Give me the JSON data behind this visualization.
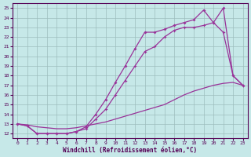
{
  "xlabel": "Windchill (Refroidissement éolien,°C)",
  "bg_color": "#c6e8e8",
  "grid_color": "#9dbdbd",
  "line_color": "#993399",
  "xlim": [
    -0.5,
    23.5
  ],
  "ylim": [
    11.5,
    25.5
  ],
  "xticks": [
    0,
    1,
    2,
    3,
    4,
    5,
    6,
    7,
    8,
    9,
    10,
    11,
    12,
    13,
    14,
    15,
    16,
    17,
    18,
    19,
    20,
    21,
    22,
    23
  ],
  "yticks": [
    12,
    13,
    14,
    15,
    16,
    17,
    18,
    19,
    20,
    21,
    22,
    23,
    24,
    25
  ],
  "line1_x": [
    0,
    1,
    2,
    3,
    4,
    5,
    6,
    7,
    8,
    9,
    10,
    11,
    12,
    13,
    14,
    15,
    16,
    17,
    18,
    19,
    20,
    21,
    22,
    23
  ],
  "line1_y": [
    13.0,
    12.9,
    12.7,
    12.6,
    12.5,
    12.5,
    12.6,
    12.8,
    13.0,
    13.2,
    13.5,
    13.8,
    14.1,
    14.4,
    14.7,
    15.0,
    15.5,
    16.0,
    16.4,
    16.7,
    17.0,
    17.2,
    17.3,
    17.0
  ],
  "line2_x": [
    0,
    1,
    2,
    3,
    4,
    5,
    6,
    7,
    8,
    9,
    10,
    11,
    12,
    13,
    14,
    15,
    16,
    17,
    18,
    19,
    20,
    21,
    22,
    23
  ],
  "line2_y": [
    13.0,
    12.8,
    12.0,
    12.0,
    12.0,
    12.0,
    12.2,
    12.5,
    13.5,
    14.5,
    16.0,
    17.5,
    19.0,
    20.5,
    21.0,
    22.0,
    22.7,
    23.0,
    23.0,
    23.2,
    23.5,
    22.5,
    18.0,
    17.0
  ],
  "line3_x": [
    0,
    1,
    2,
    3,
    4,
    5,
    6,
    7,
    8,
    9,
    10,
    11,
    12,
    13,
    14,
    15,
    16,
    17,
    18,
    19,
    20,
    21,
    22,
    23
  ],
  "line3_y": [
    13.0,
    12.8,
    12.0,
    12.0,
    12.0,
    12.0,
    12.2,
    12.7,
    14.0,
    15.5,
    17.3,
    19.0,
    20.8,
    22.5,
    22.5,
    22.8,
    23.2,
    23.5,
    23.8,
    24.8,
    23.5,
    25.0,
    18.0,
    17.0
  ]
}
